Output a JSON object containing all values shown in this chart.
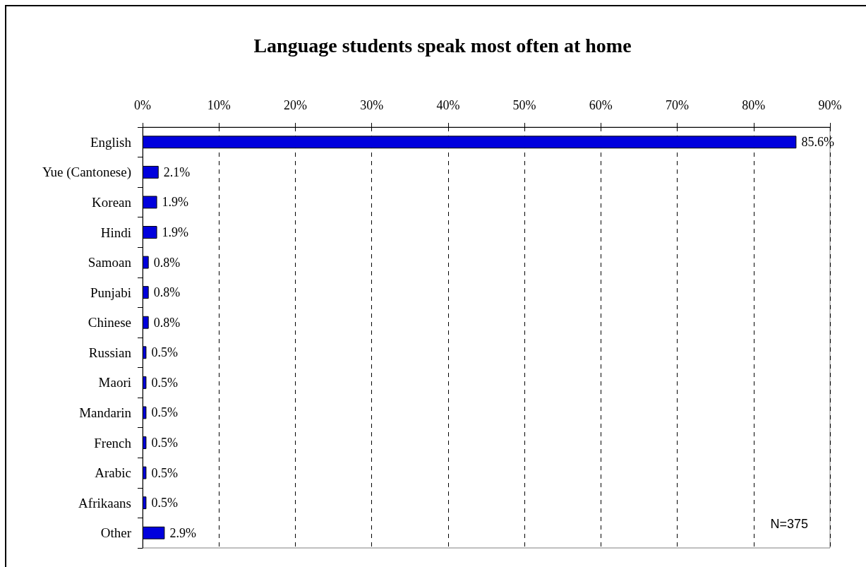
{
  "chart_data": {
    "type": "bar",
    "orientation": "horizontal",
    "title": "Language students speak most often at home",
    "categories": [
      "English",
      "Yue (Cantonese)",
      "Korean",
      "Hindi",
      "Samoan",
      "Punjabi",
      "Chinese",
      "Russian",
      "Maori",
      "Mandarin",
      "French",
      "Arabic",
      "Afrikaans",
      "Other"
    ],
    "values": [
      85.6,
      2.1,
      1.9,
      1.9,
      0.8,
      0.8,
      0.8,
      0.5,
      0.5,
      0.5,
      0.5,
      0.5,
      0.5,
      2.9
    ],
    "value_labels": [
      "85.6%",
      "2.1%",
      "1.9%",
      "1.9%",
      "0.8%",
      "0.8%",
      "0.8%",
      "0.5%",
      "0.5%",
      "0.5%",
      "0.5%",
      "0.5%",
      "0.5%",
      "2.9%"
    ],
    "color": "#0000dd",
    "xlim": [
      0,
      90
    ],
    "xticks": [
      {
        "value": 0,
        "label": "0%"
      },
      {
        "value": 10,
        "label": "10%"
      },
      {
        "value": 20,
        "label": "20%"
      },
      {
        "value": 30,
        "label": "30%"
      },
      {
        "value": 40,
        "label": "40%"
      },
      {
        "value": 50,
        "label": "50%"
      },
      {
        "value": 60,
        "label": "60%"
      },
      {
        "value": 70,
        "label": "70%"
      },
      {
        "value": 80,
        "label": "80%"
      },
      {
        "value": 90,
        "label": "90%"
      }
    ],
    "grid": "x",
    "annotations": [
      "N=375"
    ]
  }
}
